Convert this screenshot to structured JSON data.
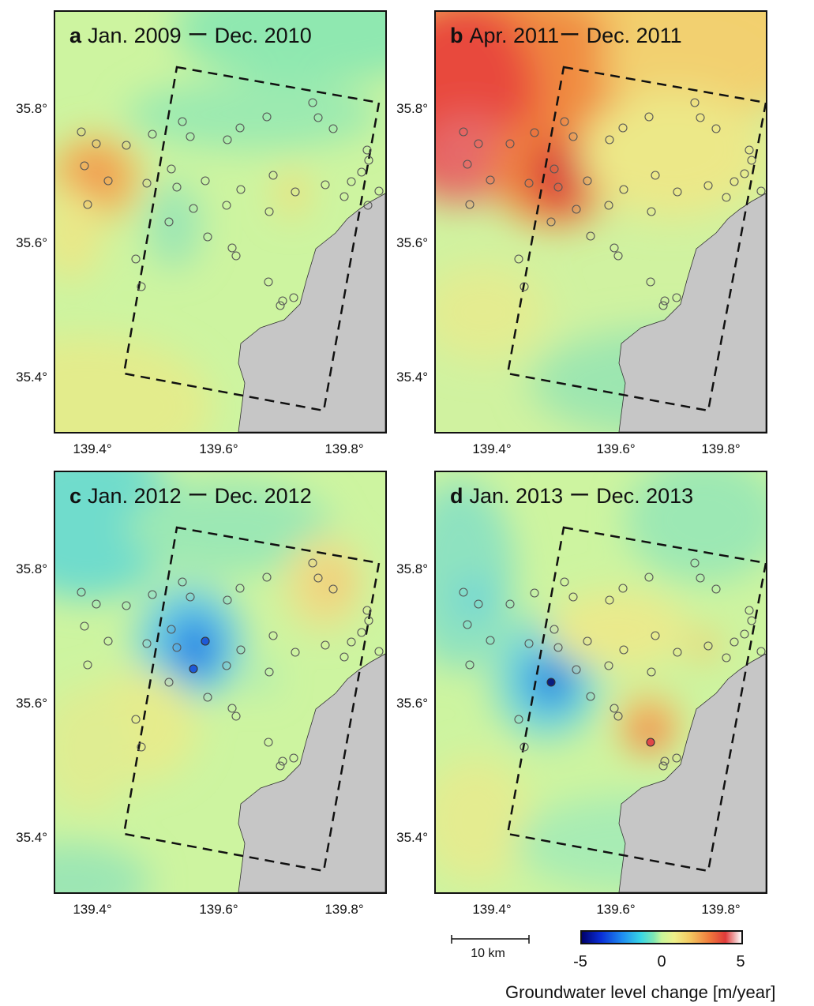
{
  "panels": [
    {
      "letter": "a",
      "period": "Jan. 2009 ー Dec. 2010"
    },
    {
      "letter": "b",
      "period": "Apr. 2011ー Dec. 2011"
    },
    {
      "letter": "c",
      "period": "Jan. 2012 ー Dec. 2012"
    },
    {
      "letter": "d",
      "period": "Jan. 2013  ー Dec. 2013"
    }
  ],
  "lat_ticks": [
    "35.8°",
    "35.6°",
    "35.4°"
  ],
  "lon_ticks": [
    "139.4°",
    "139.6°",
    "139.8°"
  ],
  "scale_bar": {
    "label": "10 km"
  },
  "colorbar": {
    "min_label": "-5",
    "mid_label": "0",
    "max_label": "5",
    "min": -5,
    "max": 5,
    "title": "Groundwater level change [m/year]"
  },
  "colors": {
    "land": "#c8c8c8",
    "base": "#d4f5a0",
    "border": "#111111"
  }
}
